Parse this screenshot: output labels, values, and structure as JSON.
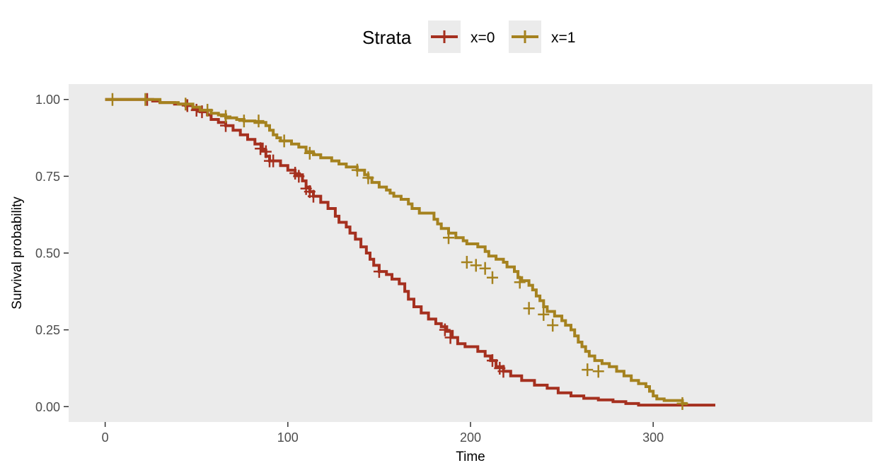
{
  "chart_data": {
    "type": "line",
    "step": true,
    "xlabel": "Time",
    "ylabel": "Survival probability",
    "xlim": [
      -20,
      420
    ],
    "ylim": [
      -0.05,
      1.05
    ],
    "x_ticks": [
      0,
      100,
      200,
      300
    ],
    "x_tick_labels": [
      "0",
      "100",
      "200",
      "300"
    ],
    "y_ticks": [
      0,
      0.25,
      0.5,
      0.75,
      1.0
    ],
    "y_tick_labels": [
      "0.00",
      "0.25",
      "0.50",
      "0.75",
      "1.00"
    ],
    "grid": false,
    "panel_background": "#ebebeb",
    "legend": {
      "title": "Strata",
      "position": "top",
      "key_background": "#ebebeb"
    },
    "series": [
      {
        "name": "x=0",
        "color": "#a5301f",
        "points": [
          [
            0,
            1.0
          ],
          [
            20,
            1.0
          ],
          [
            26,
            0.995
          ],
          [
            30,
            0.99
          ],
          [
            38,
            0.985
          ],
          [
            44,
            0.98
          ],
          [
            48,
            0.97
          ],
          [
            52,
            0.96
          ],
          [
            56,
            0.95
          ],
          [
            58,
            0.935
          ],
          [
            62,
            0.925
          ],
          [
            66,
            0.915
          ],
          [
            70,
            0.9
          ],
          [
            74,
            0.885
          ],
          [
            78,
            0.87
          ],
          [
            82,
            0.855
          ],
          [
            86,
            0.835
          ],
          [
            88,
            0.815
          ],
          [
            90,
            0.8
          ],
          [
            96,
            0.785
          ],
          [
            100,
            0.77
          ],
          [
            104,
            0.755
          ],
          [
            108,
            0.735
          ],
          [
            110,
            0.715
          ],
          [
            112,
            0.7
          ],
          [
            114,
            0.685
          ],
          [
            118,
            0.665
          ],
          [
            122,
            0.645
          ],
          [
            126,
            0.62
          ],
          [
            128,
            0.6
          ],
          [
            132,
            0.585
          ],
          [
            134,
            0.565
          ],
          [
            137,
            0.545
          ],
          [
            140,
            0.52
          ],
          [
            143,
            0.5
          ],
          [
            145,
            0.48
          ],
          [
            147,
            0.46
          ],
          [
            150,
            0.44
          ],
          [
            154,
            0.43
          ],
          [
            157,
            0.415
          ],
          [
            161,
            0.4
          ],
          [
            164,
            0.375
          ],
          [
            166,
            0.35
          ],
          [
            169,
            0.325
          ],
          [
            173,
            0.305
          ],
          [
            177,
            0.285
          ],
          [
            181,
            0.27
          ],
          [
            184,
            0.26
          ],
          [
            187,
            0.245
          ],
          [
            190,
            0.225
          ],
          [
            193,
            0.205
          ],
          [
            197,
            0.195
          ],
          [
            204,
            0.18
          ],
          [
            208,
            0.165
          ],
          [
            211,
            0.15
          ],
          [
            214,
            0.13
          ],
          [
            218,
            0.115
          ],
          [
            222,
            0.1
          ],
          [
            228,
            0.085
          ],
          [
            235,
            0.07
          ],
          [
            242,
            0.06
          ],
          [
            248,
            0.045
          ],
          [
            255,
            0.035
          ],
          [
            262,
            0.027
          ],
          [
            270,
            0.022
          ],
          [
            278,
            0.016
          ],
          [
            285,
            0.01
          ],
          [
            292,
            0.005
          ],
          [
            334,
            0.005
          ]
        ],
        "censored": [
          [
            23,
            1.0
          ],
          [
            45,
            0.98
          ],
          [
            50,
            0.965
          ],
          [
            53,
            0.96
          ],
          [
            66,
            0.915
          ],
          [
            85,
            0.84
          ],
          [
            88,
            0.83
          ],
          [
            90,
            0.8
          ],
          [
            92,
            0.8
          ],
          [
            104,
            0.76
          ],
          [
            106,
            0.75
          ],
          [
            110,
            0.71
          ],
          [
            112,
            0.7
          ],
          [
            114,
            0.685
          ],
          [
            150,
            0.44
          ],
          [
            186,
            0.25
          ],
          [
            189,
            0.225
          ],
          [
            212,
            0.15
          ],
          [
            216,
            0.125
          ],
          [
            218,
            0.115
          ]
        ]
      },
      {
        "name": "x=1",
        "color": "#a5821f",
        "points": [
          [
            0,
            1.0
          ],
          [
            30,
            0.99
          ],
          [
            40,
            0.985
          ],
          [
            48,
            0.975
          ],
          [
            52,
            0.965
          ],
          [
            58,
            0.955
          ],
          [
            62,
            0.95
          ],
          [
            66,
            0.94
          ],
          [
            72,
            0.935
          ],
          [
            76,
            0.93
          ],
          [
            82,
            0.925
          ],
          [
            88,
            0.915
          ],
          [
            90,
            0.9
          ],
          [
            92,
            0.885
          ],
          [
            94,
            0.875
          ],
          [
            96,
            0.865
          ],
          [
            102,
            0.855
          ],
          [
            106,
            0.845
          ],
          [
            110,
            0.83
          ],
          [
            114,
            0.82
          ],
          [
            118,
            0.81
          ],
          [
            124,
            0.8
          ],
          [
            128,
            0.79
          ],
          [
            132,
            0.78
          ],
          [
            138,
            0.77
          ],
          [
            142,
            0.755
          ],
          [
            144,
            0.745
          ],
          [
            146,
            0.73
          ],
          [
            150,
            0.715
          ],
          [
            154,
            0.705
          ],
          [
            156,
            0.695
          ],
          [
            158,
            0.685
          ],
          [
            162,
            0.675
          ],
          [
            166,
            0.66
          ],
          [
            168,
            0.645
          ],
          [
            172,
            0.63
          ],
          [
            178,
            0.63
          ],
          [
            180,
            0.61
          ],
          [
            182,
            0.595
          ],
          [
            184,
            0.58
          ],
          [
            188,
            0.565
          ],
          [
            192,
            0.55
          ],
          [
            196,
            0.54
          ],
          [
            198,
            0.53
          ],
          [
            204,
            0.52
          ],
          [
            208,
            0.505
          ],
          [
            210,
            0.49
          ],
          [
            214,
            0.48
          ],
          [
            218,
            0.47
          ],
          [
            220,
            0.455
          ],
          [
            224,
            0.44
          ],
          [
            226,
            0.42
          ],
          [
            228,
            0.41
          ],
          [
            232,
            0.395
          ],
          [
            234,
            0.38
          ],
          [
            236,
            0.36
          ],
          [
            238,
            0.345
          ],
          [
            240,
            0.325
          ],
          [
            242,
            0.31
          ],
          [
            246,
            0.295
          ],
          [
            250,
            0.28
          ],
          [
            252,
            0.265
          ],
          [
            255,
            0.25
          ],
          [
            257,
            0.23
          ],
          [
            259,
            0.21
          ],
          [
            261,
            0.195
          ],
          [
            263,
            0.18
          ],
          [
            265,
            0.165
          ],
          [
            268,
            0.15
          ],
          [
            272,
            0.14
          ],
          [
            276,
            0.13
          ],
          [
            280,
            0.115
          ],
          [
            284,
            0.1
          ],
          [
            288,
            0.085
          ],
          [
            292,
            0.075
          ],
          [
            296,
            0.065
          ],
          [
            298,
            0.05
          ],
          [
            300,
            0.035
          ],
          [
            302,
            0.025
          ],
          [
            306,
            0.02
          ],
          [
            316,
            0.01
          ],
          [
            318,
            0.005
          ]
        ],
        "censored": [
          [
            4,
            1.0
          ],
          [
            22,
            1.0
          ],
          [
            44,
            0.985
          ],
          [
            56,
            0.965
          ],
          [
            66,
            0.945
          ],
          [
            76,
            0.93
          ],
          [
            84,
            0.93
          ],
          [
            98,
            0.865
          ],
          [
            112,
            0.825
          ],
          [
            138,
            0.77
          ],
          [
            144,
            0.745
          ],
          [
            188,
            0.55
          ],
          [
            198,
            0.47
          ],
          [
            203,
            0.46
          ],
          [
            208,
            0.45
          ],
          [
            212,
            0.42
          ],
          [
            227,
            0.405
          ],
          [
            232,
            0.32
          ],
          [
            240,
            0.3
          ],
          [
            245,
            0.265
          ],
          [
            264,
            0.12
          ],
          [
            270,
            0.115
          ],
          [
            316,
            0.01
          ]
        ]
      }
    ]
  }
}
